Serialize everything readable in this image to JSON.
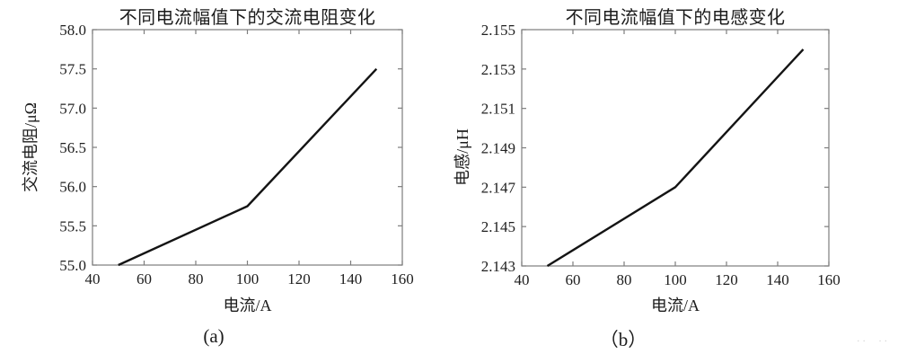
{
  "page": {
    "background": "#ffffff",
    "artifact_marks": "·· ··"
  },
  "chart_data": [
    {
      "type": "line",
      "title": "不同电流幅值下的交流电阻变化",
      "xlabel": "电流/A",
      "ylabel": "交流电阻/μΩ",
      "caption": "(a)",
      "x": [
        50,
        100,
        150
      ],
      "y": [
        55.0,
        55.75,
        57.5
      ],
      "xlim": [
        40,
        160
      ],
      "ylim": [
        55.0,
        58.0
      ],
      "xticks": [
        40,
        60,
        80,
        100,
        120,
        140,
        160
      ],
      "xtick_labels": [
        "40",
        "60",
        "80",
        "100",
        "120",
        "140",
        "160"
      ],
      "yticks": [
        55.0,
        55.5,
        56.0,
        56.5,
        57.0,
        57.5,
        58.0
      ],
      "ytick_labels": [
        "55.0",
        "55.5",
        "56.0",
        "56.5",
        "57.0",
        "57.5",
        "58.0"
      ],
      "grid": false,
      "legend": null,
      "line_color": "#141414",
      "axis_color": "#7d7d7d",
      "tick_label_color": "#202020"
    },
    {
      "type": "line",
      "title": "不同电流幅值下的电感变化",
      "xlabel": "电流/A",
      "ylabel": "电感/μH",
      "caption": "（b）",
      "x": [
        50,
        100,
        150
      ],
      "y": [
        2.143,
        2.147,
        2.154
      ],
      "xlim": [
        40,
        160
      ],
      "ylim": [
        2.143,
        2.155
      ],
      "xticks": [
        40,
        60,
        80,
        100,
        120,
        140,
        160
      ],
      "xtick_labels": [
        "40",
        "60",
        "80",
        "100",
        "120",
        "140",
        "160"
      ],
      "yticks": [
        2.143,
        2.145,
        2.147,
        2.149,
        2.151,
        2.153,
        2.155
      ],
      "ytick_labels": [
        "2.143",
        "2.145",
        "2.147",
        "2.149",
        "2.151",
        "2.153",
        "2.155"
      ],
      "grid": false,
      "legend": null,
      "line_color": "#141414",
      "axis_color": "#7d7d7d",
      "tick_label_color": "#202020"
    }
  ]
}
